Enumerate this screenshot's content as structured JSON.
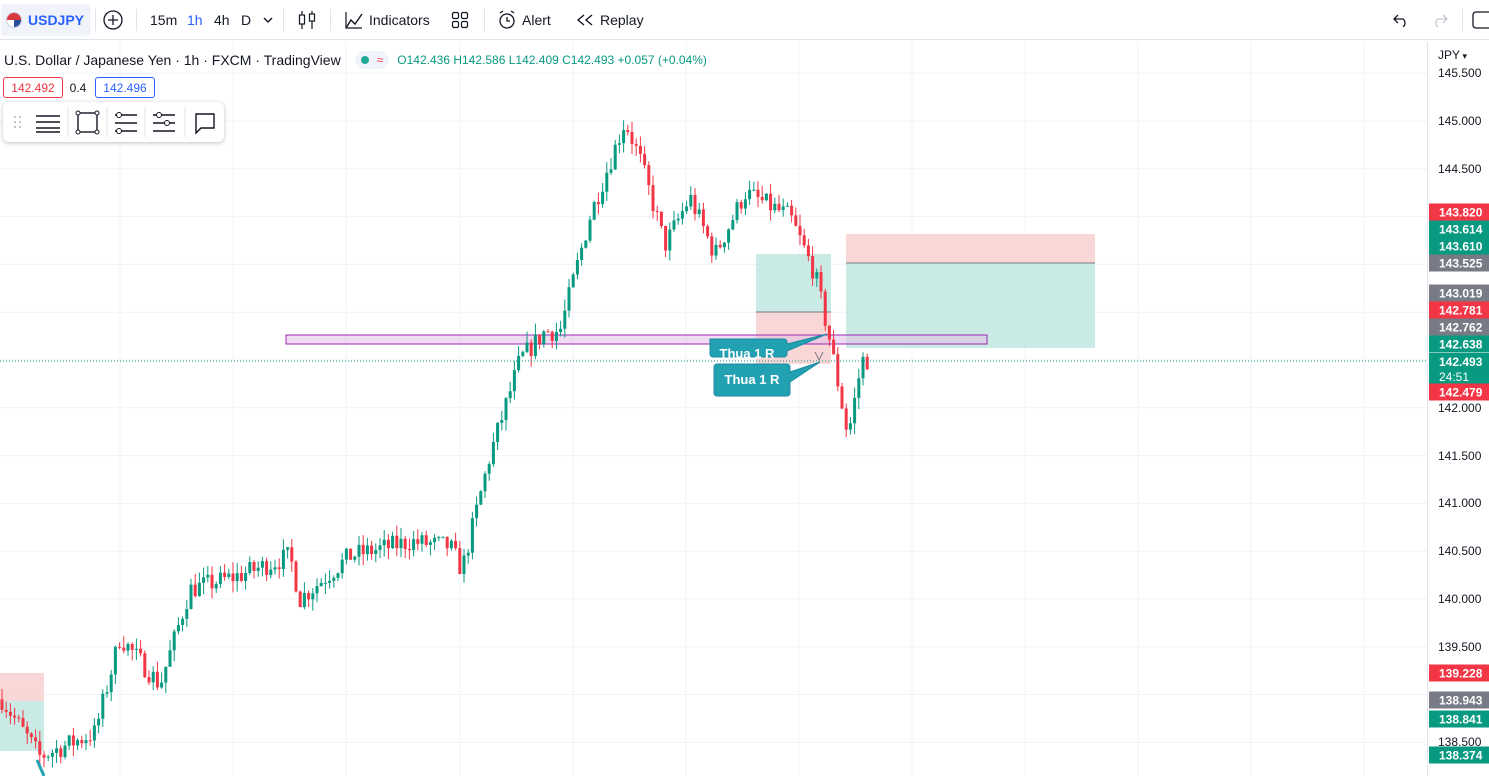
{
  "toolbar": {
    "symbol": "USDJPY",
    "intervals": [
      "15m",
      "1h",
      "4h",
      "D"
    ],
    "active_interval": "1h",
    "indicators_label": "Indicators",
    "alert_label": "Alert",
    "replay_label": "Replay"
  },
  "legend": {
    "title": "U.S. Dollar / Japanese Yen · 1h · FXCM · TradingView",
    "open": "O142.436",
    "high": "H142.586",
    "low": "L142.409",
    "close": "C142.493",
    "change": "+0.057 (+0.04%)",
    "sell_price": "142.492",
    "spread": "0.4",
    "buy_price": "142.496"
  },
  "axis": {
    "currency": "JPY",
    "ticks": [
      "145.500",
      "145.000",
      "144.500",
      "142.000",
      "141.500",
      "141.000",
      "140.500",
      "140.000",
      "139.500",
      "138.500"
    ],
    "labels": [
      {
        "text": "143.820",
        "color": "#f23645"
      },
      {
        "text": "143.614",
        "color": "#089981"
      },
      {
        "text": "143.610",
        "color": "#089981"
      },
      {
        "text": "143.525",
        "color": "#787b86"
      },
      {
        "text": "143.019",
        "color": "#787b86"
      },
      {
        "text": "142.781",
        "color": "#f23645"
      },
      {
        "text": "142.762",
        "color": "#787b86"
      },
      {
        "text": "142.638",
        "color": "#089981"
      },
      {
        "text": "142.493",
        "color": "#089981"
      },
      {
        "text": "142.479",
        "color": "#f23645"
      },
      {
        "text": "139.228",
        "color": "#f23645"
      },
      {
        "text": "138.943",
        "color": "#787b86"
      },
      {
        "text": "138.841",
        "color": "#089981"
      },
      {
        "text": "138.374",
        "color": "#089981"
      }
    ],
    "countdown": "24:51"
  },
  "callouts": [
    "Thua 1 R",
    "Thua 1 R"
  ],
  "colors": {
    "up": "#089981",
    "down": "#f23645",
    "accent": "#2962ff"
  }
}
